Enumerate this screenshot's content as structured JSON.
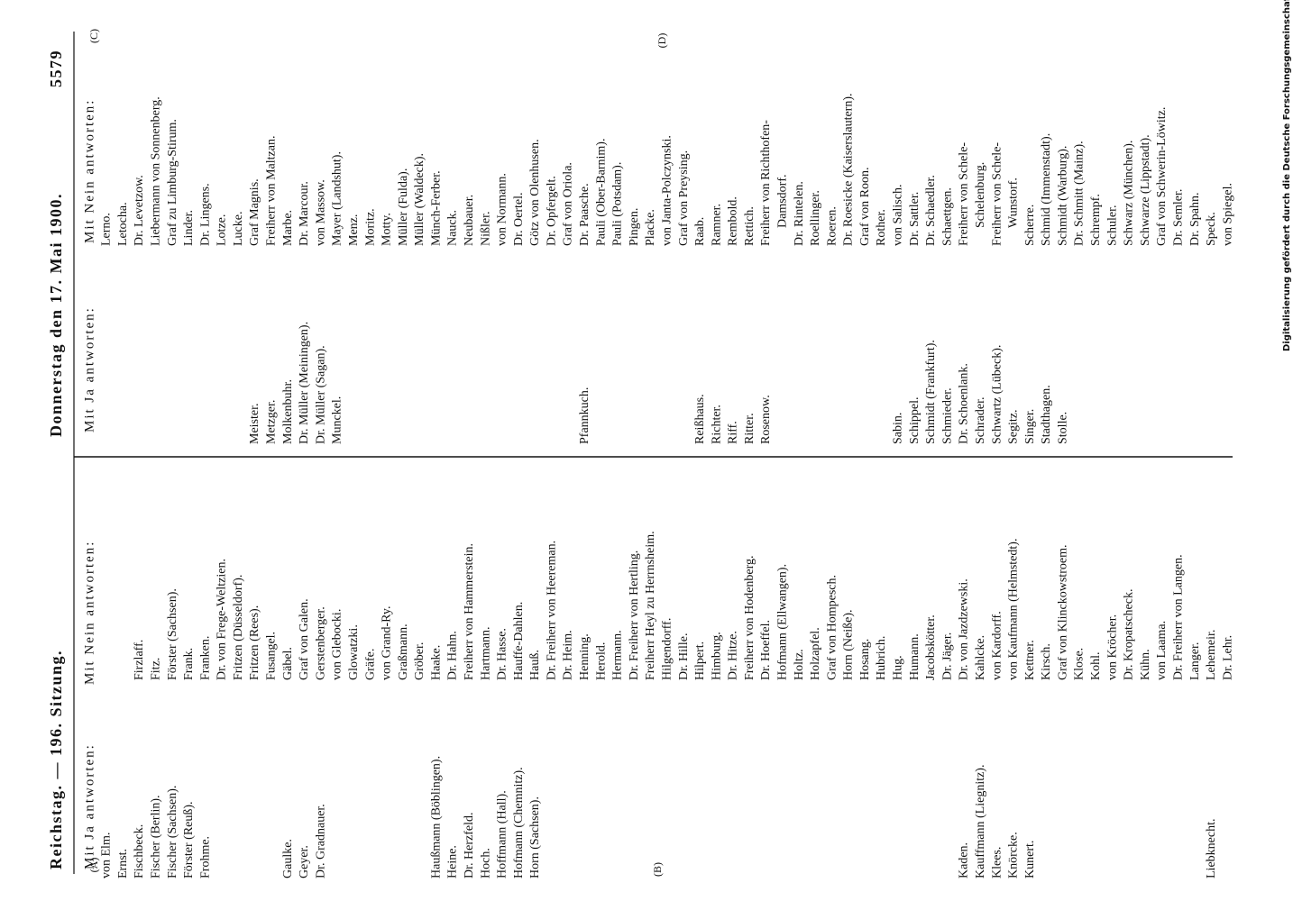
{
  "header": {
    "left": "Reichstag. — 196. Sitzung.",
    "center": "Donnerstag den 17. Mai 1900.",
    "page_number": "5579"
  },
  "margin_marks": [
    "(A)",
    "(B)",
    "(C)",
    "(D)"
  ],
  "columns": [
    {
      "yes_heading": "Mit Ja antworten:",
      "yes": [
        "von Elm.",
        "Ernst.",
        "Fischbeck.",
        "Fischer (Berlin).",
        "Fischer (Sachsen).",
        "Förster (Reuß).",
        "Frohme.",
        "Gaulke.",
        "Geyer.",
        "Dr. Gradnauer.",
        "Haußmann (Böblingen).",
        "Heine.",
        "Dr. Herzfeld.",
        "Hoch.",
        "Hoffmann (Hall).",
        "Hofmann (Chemnitz).",
        "Horn (Sachsen).",
        "Kaden.",
        "Kauffmann (Liegnitz).",
        "Klees.",
        "Knörcke.",
        "Kunert.",
        "Liebknecht."
      ],
      "no_heading": "Mit Nein antworten:",
      "no": [
        "Firzlaff.",
        "Fitz.",
        "Förster (Sachsen).",
        "Frank.",
        "Franken.",
        "Dr. von Frege-Weltzien.",
        "Fritzen (Düsseldorf).",
        "Fritzen (Rees).",
        "Fusangel.",
        "Gäbel.",
        "Graf von Galen.",
        "Gerstenberger.",
        "von Glebocki.",
        "Glowatzki.",
        "Gräfe.",
        "von Grand-Ry.",
        "Graßmann.",
        "Gröber.",
        "Haake.",
        "Dr. Hahn.",
        "Freiherr von Hammerstein.",
        "Hartmann.",
        "Dr. Hasse.",
        "Hauffe-Dahlen.",
        "Hauß.",
        "Dr. Freiherr von Heereman.",
        "Dr. Heim.",
        "Henning.",
        "Herold.",
        "Hermann.",
        "Dr. Freiherr von Hertling.",
        "Freiherr Heyl zu Herrnsheim.",
        "Hilgendorff.",
        "Dr. Hille.",
        "Hilpert.",
        "Himburg.",
        "Dr. Hitze.",
        "Freiherr von Hodenberg.",
        "Dr. Hoeffel.",
        "Hofmann (Ellwangen).",
        "Holtz.",
        "Holzapfel.",
        "Graf von Hompesch.",
        "Horn (Neiße).",
        "Hosang.",
        "Hubrich.",
        "Hug.",
        "Humann.",
        "Jacobskötter.",
        "Dr. Jäger.",
        "Dr. von Jazdzewski.",
        "Kahlcke.",
        "von Kardorff.",
        "von Kaufmann (Helmstedt).",
        "Kettner.",
        "Kirsch.",
        "Graf von Klinckowstroem.",
        "Klose.",
        "Kohl.",
        "von Kröcher.",
        "Dr. Kropatscheck.",
        "Kühn.",
        "von Laama.",
        "Dr. Freiherr von Langen.",
        "Langer.",
        "Lehemeir.",
        "Dr. Lehr."
      ]
    },
    {
      "yes_heading": "Mit Ja antworten:",
      "yes": [
        "Meister.",
        "Metzger.",
        "Molkenbuhr.",
        "Dr. Müller (Meiningen).",
        "Dr. Müller (Sagan).",
        "Munckel.",
        "Pfannkuch.",
        "Reißhaus.",
        "Richter.",
        "Riff.",
        "Ritter.",
        "Rosenow.",
        "Sabin.",
        "Schippel.",
        "Schmidt (Frankfurt).",
        "Schmieder.",
        "Dr. Schoenlank.",
        "Schrader.",
        "Schwartz (Lübeck).",
        "Segitz.",
        "Singer.",
        "Stadthagen.",
        "Stolle."
      ],
      "no_heading": "Mit Nein antworten:",
      "no": [
        "Lerno.",
        "Letocha.",
        "Dr. Levetzow.",
        "Liebermann von Sonnenberg.",
        "Graf zu Limburg-Stirum.",
        "Linder.",
        "Dr. Lingens.",
        "Lotze.",
        "Lucke.",
        "Graf Magnis.",
        "Freiherr von Maltzan.",
        "Marbe.",
        "Dr. Marcour.",
        "von Massow.",
        "Mayer (Landshut).",
        "Menz.",
        "Moritz.",
        "Motty.",
        "Müller (Fulda).",
        "Müller (Waldeck).",
        "Münch-Ferber.",
        "Nauck.",
        "Neubauer.",
        "Nißler.",
        "von Normann.",
        "Dr. Oertel.",
        "Götz von Olenhusen.",
        "Dr. Opfergelt.",
        "Graf von Oriola.",
        "Dr. Paasche.",
        "Pauli (Ober-Barnim).",
        "Pauli (Potsdam).",
        "Pingen.",
        "Placke.",
        "von Janta-Polczynski.",
        "Graf von Preysing.",
        "Raab.",
        "Ramner.",
        "Rembold.",
        "Rettich.",
        [
          "Freiherr von Richthofen-",
          "Damsdorf."
        ],
        "Dr. Rintelen.",
        "Roellinger.",
        "Roeren.",
        "Dr. Roesicke (Kaiserslautern).",
        "Graf von Roon.",
        "Rother.",
        "von Salisch.",
        "Dr. Sattler.",
        "Dr. Schaedler.",
        "Schaettgen.",
        [
          "Freiherr von Schele-",
          "Schelenburg."
        ],
        [
          "Freiherr von Schele-",
          "Wunstorf."
        ],
        "Scherre.",
        "Schmid (Immenstadt).",
        "Schmidt (Warburg).",
        "Dr. Schmitt (Mainz).",
        "Schrempf.",
        "Schuler.",
        "Schwarz (München).",
        "Schwarze (Lippstadt).",
        "Graf von Schwerin-Löwitz.",
        "Dr. Semler.",
        "Dr. Spahn.",
        "Speck.",
        "von Spiegel."
      ]
    }
  ],
  "footer_note": "Digitalisierung gefördert durch die Deutsche Forschungsgemeinschaft · DFG"
}
